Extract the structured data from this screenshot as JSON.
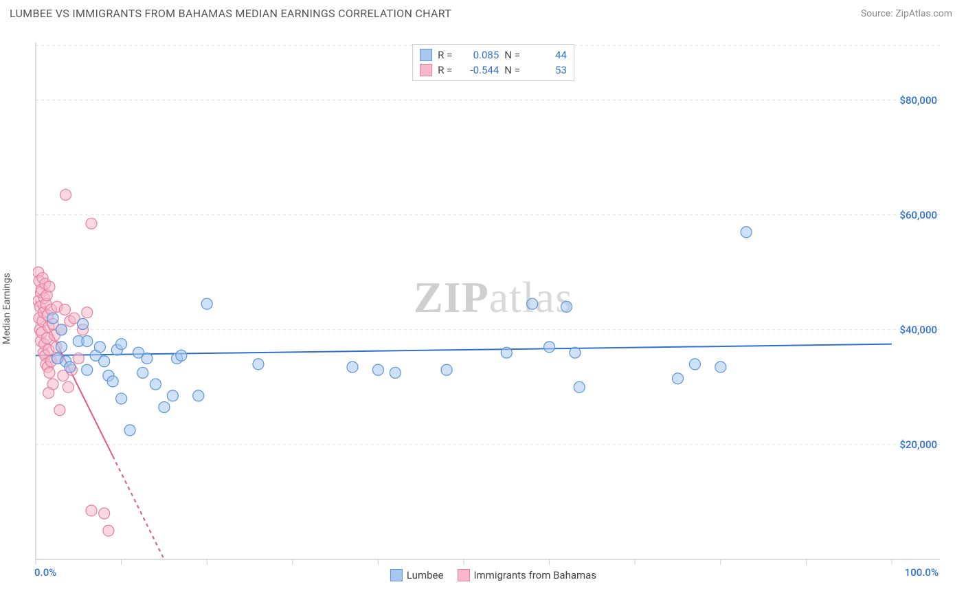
{
  "header": {
    "title": "LUMBEE VS IMMIGRANTS FROM BAHAMAS MEDIAN EARNINGS CORRELATION CHART",
    "source": "Source: ZipAtlas.com"
  },
  "watermark": {
    "part1": "ZIP",
    "part2": "atlas"
  },
  "chart": {
    "type": "scatter",
    "background_color": "#ffffff",
    "grid_color": "#dddddd",
    "axis_color": "#bbbbbb",
    "tick_color": "#cccccc",
    "xlim": [
      0,
      100
    ],
    "ylim": [
      0,
      90000
    ],
    "x_ticks": [
      0,
      10,
      20,
      30,
      40,
      50,
      60,
      70,
      80,
      90,
      100
    ],
    "y_grid": [
      20000,
      40000,
      60000,
      80000
    ],
    "y_tick_labels": [
      "$20,000",
      "$40,000",
      "$60,000",
      "$80,000"
    ],
    "x_min_label": "0.0%",
    "x_max_label": "100.0%",
    "tick_label_color": "#2f6fd0",
    "y_axis_label": "Median Earnings",
    "y_axis_label_color": "#555555",
    "marker_radius": 8,
    "marker_opacity": 0.55,
    "line_width": 2,
    "series": [
      {
        "name": "Lumbee",
        "color_fill": "#a8c8f0",
        "color_stroke": "#5a93d6",
        "line_color": "#2f6fd0",
        "R": "0.085",
        "N": "44",
        "trend": {
          "x1": 0,
          "y1": 35500,
          "x2": 100,
          "y2": 37500,
          "dashed_from": null
        },
        "points": [
          [
            2,
            42000
          ],
          [
            2.5,
            35000
          ],
          [
            3,
            37000
          ],
          [
            3,
            40000
          ],
          [
            3.5,
            34500
          ],
          [
            4,
            33500
          ],
          [
            5,
            38000
          ],
          [
            5.5,
            41000
          ],
          [
            6,
            33000
          ],
          [
            6,
            38000
          ],
          [
            7,
            35500
          ],
          [
            7.5,
            37000
          ],
          [
            8,
            34500
          ],
          [
            8.5,
            32000
          ],
          [
            9,
            31000
          ],
          [
            9.5,
            36500
          ],
          [
            10,
            37500
          ],
          [
            10,
            28000
          ],
          [
            11,
            22500
          ],
          [
            12,
            36000
          ],
          [
            12.5,
            32500
          ],
          [
            13,
            35000
          ],
          [
            14,
            30500
          ],
          [
            15,
            26500
          ],
          [
            16,
            28500
          ],
          [
            16.5,
            35000
          ],
          [
            17,
            35500
          ],
          [
            19,
            28500
          ],
          [
            20,
            44500
          ],
          [
            26,
            34000
          ],
          [
            37,
            33500
          ],
          [
            40,
            33000
          ],
          [
            42,
            32500
          ],
          [
            48,
            33000
          ],
          [
            55,
            36000
          ],
          [
            58,
            44500
          ],
          [
            60,
            37000
          ],
          [
            62,
            44000
          ],
          [
            63,
            36000
          ],
          [
            63.5,
            30000
          ],
          [
            75,
            31500
          ],
          [
            77,
            34000
          ],
          [
            80,
            33500
          ],
          [
            83,
            57000
          ]
        ]
      },
      {
        "name": "Immigrants from Bahamas",
        "color_fill": "#f6b8ca",
        "color_stroke": "#e77da0",
        "line_color": "#e35582",
        "R": "-0.544",
        "N": "53",
        "trend": {
          "x1": 0,
          "y1": 45000,
          "x2": 15,
          "y2": 0,
          "dashed_from": 9
        },
        "points": [
          [
            0.3,
            45000
          ],
          [
            0.3,
            50000
          ],
          [
            0.4,
            48500
          ],
          [
            0.4,
            42000
          ],
          [
            0.5,
            44000
          ],
          [
            0.5,
            40000
          ],
          [
            0.6,
            46500
          ],
          [
            0.6,
            38000
          ],
          [
            0.7,
            47000
          ],
          [
            0.7,
            39500
          ],
          [
            0.8,
            49000
          ],
          [
            0.8,
            41500
          ],
          [
            0.9,
            36000
          ],
          [
            0.9,
            43000
          ],
          [
            1.0,
            45500
          ],
          [
            1.0,
            37500
          ],
          [
            1.1,
            48000
          ],
          [
            1.1,
            35500
          ],
          [
            1.2,
            44500
          ],
          [
            1.2,
            34000
          ],
          [
            1.3,
            46000
          ],
          [
            1.3,
            38500
          ],
          [
            1.4,
            42500
          ],
          [
            1.4,
            33500
          ],
          [
            1.5,
            40500
          ],
          [
            1.5,
            36500
          ],
          [
            1.6,
            47500
          ],
          [
            1.6,
            32500
          ],
          [
            1.8,
            43500
          ],
          [
            1.8,
            34500
          ],
          [
            2.0,
            41000
          ],
          [
            2.0,
            30500
          ],
          [
            2.2,
            39000
          ],
          [
            2.4,
            37000
          ],
          [
            2.5,
            44000
          ],
          [
            2.6,
            35000
          ],
          [
            2.8,
            26000
          ],
          [
            3.0,
            40000
          ],
          [
            3.2,
            32000
          ],
          [
            3.4,
            43500
          ],
          [
            3.5,
            63500
          ],
          [
            3.8,
            30000
          ],
          [
            4.0,
            41500
          ],
          [
            4.2,
            33000
          ],
          [
            4.5,
            42000
          ],
          [
            5.0,
            35000
          ],
          [
            5.5,
            40000
          ],
          [
            6.0,
            43000
          ],
          [
            6.5,
            58500
          ],
          [
            6.5,
            8500
          ],
          [
            8.0,
            8000
          ],
          [
            8.5,
            5000
          ],
          [
            1.5,
            29000
          ]
        ]
      }
    ]
  },
  "stats_box": {
    "r_label": "R =",
    "n_label": "N =",
    "value_color": "#2f6fd0"
  },
  "legend": {
    "items": [
      {
        "label": "Lumbee",
        "fill": "#a8c8f0",
        "stroke": "#5a93d6"
      },
      {
        "label": "Immigrants from Bahamas",
        "fill": "#f6b8ca",
        "stroke": "#e77da0"
      }
    ]
  }
}
